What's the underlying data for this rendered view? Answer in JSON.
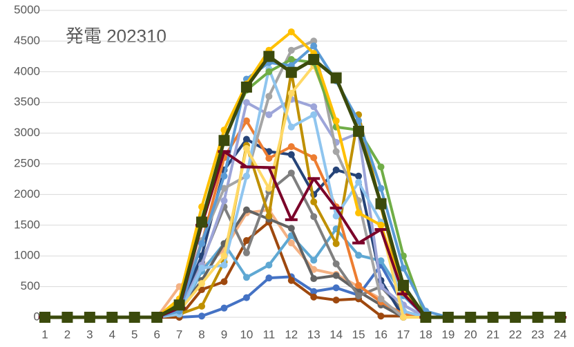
{
  "chart_data": {
    "type": "line",
    "title": "発電 202310",
    "x": [
      1,
      2,
      3,
      4,
      5,
      6,
      7,
      8,
      9,
      10,
      11,
      12,
      13,
      14,
      15,
      16,
      17,
      18,
      19,
      20,
      21,
      22,
      23,
      24
    ],
    "xlim": [
      1,
      24
    ],
    "xticks": [
      1,
      2,
      3,
      4,
      5,
      6,
      7,
      8,
      9,
      10,
      11,
      12,
      13,
      14,
      15,
      16,
      17,
      18,
      19,
      20,
      21,
      22,
      23,
      24
    ],
    "ylim": [
      0,
      5000
    ],
    "yticks": [
      0,
      500,
      1000,
      1500,
      2000,
      2500,
      3000,
      3500,
      4000,
      4500,
      5000
    ],
    "grid": true,
    "series": [
      {
        "color": "#4472c4",
        "values": [
          0,
          0,
          0,
          0,
          0,
          0,
          0,
          20,
          150,
          320,
          640,
          660,
          420,
          480,
          360,
          850,
          200,
          0,
          0,
          0,
          0,
          0,
          0,
          0
        ]
      },
      {
        "color": "#9e480e",
        "values": [
          0,
          0,
          0,
          0,
          0,
          0,
          0,
          450,
          580,
          1250,
          1550,
          600,
          330,
          280,
          300,
          20,
          20,
          0,
          0,
          0,
          0,
          0,
          0,
          0
        ]
      },
      {
        "color": "#f4b183",
        "values": [
          0,
          0,
          0,
          0,
          0,
          0,
          500,
          800,
          1100,
          1700,
          1750,
          1210,
          780,
          700,
          500,
          300,
          0,
          0,
          0,
          0,
          0,
          0,
          0,
          0
        ]
      },
      {
        "color": "#5fa8d3",
        "values": [
          0,
          0,
          0,
          0,
          0,
          0,
          50,
          750,
          1200,
          650,
          850,
          1330,
          930,
          1440,
          1010,
          920,
          350,
          0,
          0,
          0,
          0,
          0,
          0,
          0
        ]
      },
      {
        "color": "#636363",
        "values": [
          0,
          0,
          0,
          0,
          0,
          0,
          100,
          600,
          1200,
          1750,
          1600,
          1450,
          630,
          680,
          420,
          200,
          0,
          0,
          0,
          0,
          0,
          0,
          0,
          0
        ]
      },
      {
        "color": "#7f7f7f",
        "values": [
          0,
          0,
          0,
          0,
          0,
          0,
          100,
          900,
          1800,
          1050,
          2050,
          2350,
          1640,
          870,
          350,
          500,
          100,
          0,
          0,
          0,
          0,
          0,
          0,
          0
        ]
      },
      {
        "color": "#264478",
        "values": [
          0,
          0,
          0,
          0,
          0,
          0,
          150,
          1000,
          2400,
          2900,
          2700,
          2650,
          2000,
          2400,
          2300,
          600,
          0,
          0,
          0,
          0,
          0,
          0,
          0,
          0
        ]
      },
      {
        "color": "#ed7d31",
        "values": [
          0,
          0,
          0,
          0,
          0,
          0,
          200,
          1200,
          2600,
          3200,
          2590,
          2780,
          2600,
          1800,
          520,
          250,
          50,
          0,
          0,
          0,
          0,
          0,
          0,
          0
        ]
      },
      {
        "color": "#9da5d9",
        "values": [
          0,
          0,
          0,
          0,
          0,
          0,
          100,
          850,
          1900,
          3500,
          3300,
          3550,
          3430,
          2850,
          3000,
          500,
          200,
          0,
          0,
          0,
          0,
          0,
          0,
          0
        ]
      },
      {
        "color": "#bf9000",
        "values": [
          0,
          0,
          0,
          0,
          0,
          0,
          50,
          180,
          900,
          2800,
          1650,
          4000,
          1880,
          1200,
          3300,
          1800,
          400,
          0,
          0,
          0,
          0,
          0,
          0,
          0
        ]
      },
      {
        "color": "#a5a5a5",
        "values": [
          0,
          0,
          0,
          0,
          0,
          0,
          150,
          1250,
          2100,
          2300,
          3600,
          4350,
          4500,
          2700,
          1900,
          300,
          0,
          0,
          0,
          0,
          0,
          0,
          0,
          0
        ]
      },
      {
        "color": "#8fc5ef",
        "values": [
          0,
          0,
          0,
          0,
          0,
          0,
          50,
          800,
          850,
          2300,
          4050,
          3100,
          3300,
          1650,
          2200,
          1550,
          100,
          0,
          0,
          0,
          0,
          0,
          0,
          0
        ]
      },
      {
        "color": "#ffd966",
        "values": [
          0,
          0,
          0,
          0,
          0,
          0,
          100,
          550,
          1000,
          2750,
          2100,
          3650,
          4100,
          3200,
          1700,
          1500,
          0,
          0,
          0,
          0,
          0,
          0,
          0,
          0
        ]
      },
      {
        "color": "#70ad47",
        "values": [
          0,
          0,
          0,
          0,
          0,
          0,
          250,
          1600,
          2900,
          3700,
          4000,
          4200,
          4150,
          3100,
          3050,
          2450,
          1000,
          0,
          0,
          0,
          0,
          0,
          0,
          0
        ]
      },
      {
        "color": "#5b9bd5",
        "values": [
          0,
          0,
          0,
          0,
          0,
          0,
          100,
          1200,
          2300,
          3880,
          4150,
          4100,
          4420,
          3850,
          3200,
          2100,
          800,
          100,
          0,
          0,
          0,
          0,
          0,
          0
        ]
      },
      {
        "color": "#ffc000",
        "values": [
          0,
          0,
          0,
          0,
          0,
          0,
          300,
          1800,
          3050,
          3800,
          4350,
          4650,
          4300,
          3200,
          1700,
          1500,
          400,
          0,
          0,
          0,
          0,
          0,
          0,
          0
        ]
      },
      {
        "color": "#7b0029",
        "marker": "dash",
        "values": [
          0,
          0,
          0,
          0,
          0,
          0,
          150,
          1500,
          2700,
          2450,
          2440,
          1590,
          2260,
          1780,
          1210,
          1430,
          380,
          0,
          0,
          0,
          0,
          0,
          0,
          0
        ]
      },
      {
        "color": "#3b4a0c",
        "marker": "square",
        "values": [
          0,
          0,
          0,
          0,
          0,
          0,
          200,
          1550,
          2880,
          3750,
          4250,
          3990,
          4200,
          3900,
          3030,
          1850,
          520,
          0,
          0,
          0,
          0,
          0,
          0,
          0
        ]
      }
    ]
  }
}
